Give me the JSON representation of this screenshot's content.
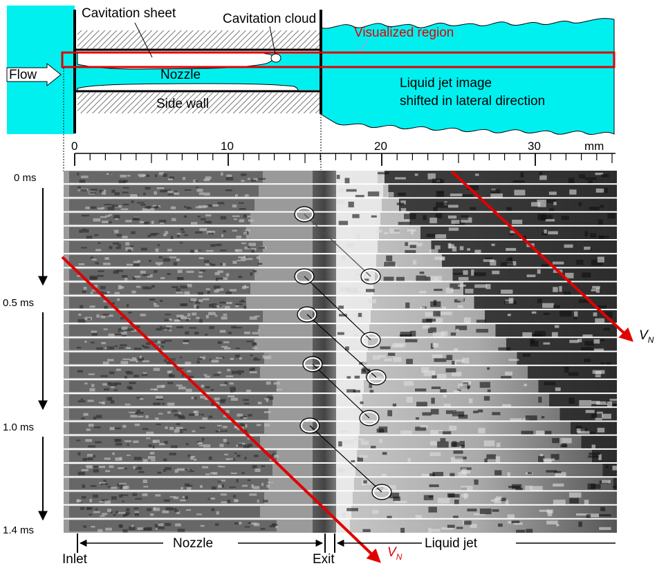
{
  "schematic": {
    "labels": {
      "cavitation_sheet": "Cavitation sheet",
      "cavitation_cloud": "Cavitation cloud",
      "visualized_region": "Visualized region",
      "flow": "Flow",
      "nozzle": "Nozzle",
      "side_wall": "Side wall",
      "liquid_jet_line1": "Liquid jet image",
      "liquid_jet_line2": "shifted in lateral direction"
    },
    "colors": {
      "water": "#00f0f0",
      "highlight": "#e00000"
    }
  },
  "scale": {
    "ticks": [
      "0",
      "10",
      "20",
      "30"
    ],
    "unit": "mm",
    "range_mm": [
      0,
      35
    ]
  },
  "frames": {
    "count": 26,
    "time_labels": [
      "0 ms",
      "0.5 ms",
      "1.0 ms",
      "1.4 ms"
    ],
    "velocity_label": "V",
    "velocity_subscript": "N"
  },
  "bottom_labels": {
    "inlet": "Inlet",
    "nozzle": "Nozzle",
    "exit": "Exit",
    "liquid_jet": "Liquid jet"
  }
}
